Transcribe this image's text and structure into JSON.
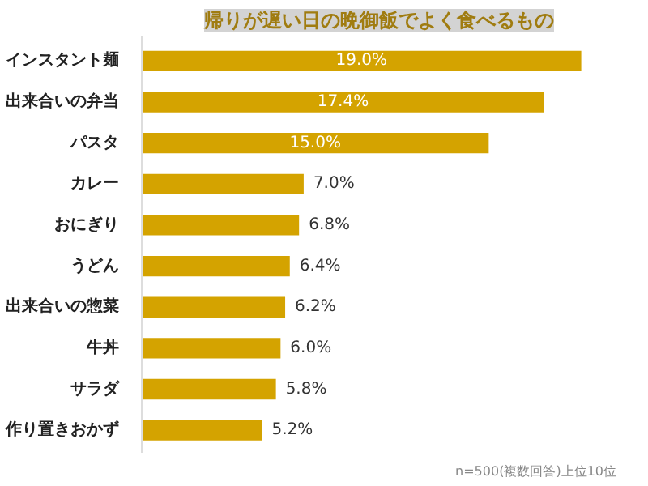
{
  "chart_data": {
    "type": "bar",
    "orientation": "horizontal",
    "title": "帰りが遅い日の晩御飯でよく食べるもの",
    "categories": [
      "インスタント麺",
      "出来合いの弁当",
      "パスタ",
      "カレー",
      "おにぎり",
      "うどん",
      "出来合いの惣菜",
      "牛丼",
      "サラダ",
      "作り置きおかず"
    ],
    "values": [
      19.0,
      17.4,
      15.0,
      7.0,
      6.8,
      6.4,
      6.2,
      6.0,
      5.8,
      5.2
    ],
    "value_labels": [
      "19.0%",
      "17.4%",
      "15.0%",
      "7.0%",
      "6.8%",
      "6.4%",
      "6.2%",
      "6.0%",
      "5.8%",
      "5.2%"
    ],
    "color": "#d4a300",
    "grid": false,
    "annotations": [
      "n=500(複数回答)上位10位"
    ]
  }
}
